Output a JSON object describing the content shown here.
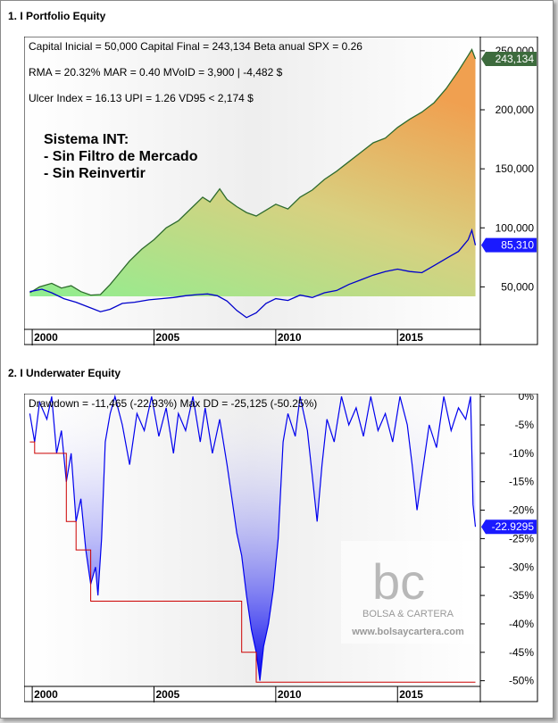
{
  "panel1": {
    "title": "1. I Portfolio Equity",
    "stats": [
      "Capital Inicial = 50,000  Capital Final = 243,134  Beta anual SPX = 0.26",
      "RMA = 20.32%   MAR = 0.40   MVoID = 3,900 | -4,482 $",
      "Ulcer Index = 16.13   UPI = 1.26   VD95 < 2,174 $"
    ],
    "overlay": [
      "Sistema INT:",
      "- Sin Filtro de Mercado",
      "- Sin Reinvertir"
    ]
  },
  "panel2": {
    "title": "2. I Underwater Equity",
    "stats": "Drawdown = -11,465 (-22.93%)        Max DD = -25,125 (-50.25%)",
    "watermark_brand": "BOLSA & CARTERA",
    "watermark_url": "www.bolsaycartera.com"
  },
  "colors": {
    "equity_line": "#2e6b2e",
    "benchmark_line": "#0000cc",
    "area_low": "#90ee90",
    "area_high": "#f0a050",
    "dd_fill": "#0000ee",
    "maxdd_line": "#cc0000",
    "label_green": "#3d6b3d",
    "label_blue": "#1a1aff"
  },
  "chart_data": [
    {
      "type": "line",
      "title": "1. I Portfolio Equity",
      "x_ticks": [
        "2000",
        "2005",
        "2010",
        "2015"
      ],
      "xlim": [
        1999.85,
        2018.4
      ],
      "y_ticks": [
        "50,000",
        "100,000",
        "150,000",
        "200,000",
        "250,000"
      ],
      "y_tick_values": [
        50000,
        100000,
        150000,
        200000,
        250000
      ],
      "ylim": [
        14000,
        262000
      ],
      "last_value_labels": [
        "243,134",
        "85,310"
      ],
      "series": [
        {
          "values": [
            [
              1999.9,
              45000
            ],
            [
              2000.3,
              50000
            ],
            [
              2000.8,
              53000
            ],
            [
              2001.2,
              49000
            ],
            [
              2001.6,
              51000
            ],
            [
              2002.0,
              46000
            ],
            [
              2002.4,
              43000
            ],
            [
              2002.8,
              43500
            ],
            [
              2003.2,
              52000
            ],
            [
              2003.6,
              62000
            ],
            [
              2004.0,
              72000
            ],
            [
              2004.5,
              82000
            ],
            [
              2005.0,
              90000
            ],
            [
              2005.5,
              100000
            ],
            [
              2006.0,
              106000
            ],
            [
              2006.5,
              116000
            ],
            [
              2007.0,
              126000
            ],
            [
              2007.3,
              122000
            ],
            [
              2007.7,
              133000
            ],
            [
              2008.0,
              124000
            ],
            [
              2008.4,
              118000
            ],
            [
              2008.8,
              113000
            ],
            [
              2009.2,
              110000
            ],
            [
              2009.6,
              115000
            ],
            [
              2010.0,
              120000
            ],
            [
              2010.5,
              116000
            ],
            [
              2011.0,
              126000
            ],
            [
              2011.5,
              132000
            ],
            [
              2012.0,
              141000
            ],
            [
              2012.5,
              148000
            ],
            [
              2013.0,
              156000
            ],
            [
              2013.5,
              164000
            ],
            [
              2014.0,
              172000
            ],
            [
              2014.5,
              176000
            ],
            [
              2015.0,
              185000
            ],
            [
              2015.5,
              192000
            ],
            [
              2016.0,
              198000
            ],
            [
              2016.5,
              206000
            ],
            [
              2017.0,
              218000
            ],
            [
              2017.5,
              233000
            ],
            [
              2017.9,
              246000
            ],
            [
              2018.05,
              251000
            ],
            [
              2018.2,
              243134
            ]
          ]
        },
        {
          "values": [
            [
              1999.9,
              46000
            ],
            [
              2000.4,
              48000
            ],
            [
              2000.8,
              45000
            ],
            [
              2001.3,
              40000
            ],
            [
              2001.8,
              37000
            ],
            [
              2002.3,
              33000
            ],
            [
              2002.8,
              29000
            ],
            [
              2003.2,
              31000
            ],
            [
              2003.7,
              36000
            ],
            [
              2004.2,
              37000
            ],
            [
              2004.8,
              39000
            ],
            [
              2005.3,
              40000
            ],
            [
              2005.8,
              41000
            ],
            [
              2006.3,
              42500
            ],
            [
              2006.8,
              43500
            ],
            [
              2007.2,
              44000
            ],
            [
              2007.6,
              42500
            ],
            [
              2008.0,
              38000
            ],
            [
              2008.4,
              30000
            ],
            [
              2008.8,
              24000
            ],
            [
              2009.2,
              28000
            ],
            [
              2009.6,
              36000
            ],
            [
              2010.0,
              40000
            ],
            [
              2010.5,
              38500
            ],
            [
              2011.0,
              43000
            ],
            [
              2011.5,
              41000
            ],
            [
              2012.0,
              45000
            ],
            [
              2012.5,
              47000
            ],
            [
              2013.0,
              52000
            ],
            [
              2013.5,
              56000
            ],
            [
              2014.0,
              60000
            ],
            [
              2014.5,
              63000
            ],
            [
              2015.0,
              65000
            ],
            [
              2015.5,
              63000
            ],
            [
              2016.0,
              62000
            ],
            [
              2016.5,
              68000
            ],
            [
              2017.0,
              74000
            ],
            [
              2017.5,
              80000
            ],
            [
              2017.9,
              90000
            ],
            [
              2018.05,
              98000
            ],
            [
              2018.2,
              85310
            ]
          ]
        }
      ]
    },
    {
      "type": "area",
      "title": "2. I Underwater Equity",
      "x_ticks": [
        "2000",
        "2005",
        "2010",
        "2015"
      ],
      "xlim": [
        1999.85,
        2018.4
      ],
      "y_ticks": [
        "0%",
        "-5%",
        "-10%",
        "-15%",
        "-20%",
        "-25%",
        "-30%",
        "-35%",
        "-40%",
        "-45%",
        "-50%"
      ],
      "y_tick_values": [
        0,
        -5,
        -10,
        -15,
        -20,
        -25,
        -30,
        -35,
        -40,
        -45,
        -50
      ],
      "ylim": [
        -51,
        0.5
      ],
      "last_value_label": "-22.9295",
      "series": [
        {
          "name": "Drawdown %",
          "values": [
            [
              1999.9,
              -3
            ],
            [
              2000.1,
              -8
            ],
            [
              2000.3,
              -1
            ],
            [
              2000.6,
              -4
            ],
            [
              2000.8,
              0
            ],
            [
              2001.0,
              -10
            ],
            [
              2001.2,
              -6
            ],
            [
              2001.4,
              -15
            ],
            [
              2001.6,
              -10
            ],
            [
              2001.8,
              -22
            ],
            [
              2002.0,
              -18
            ],
            [
              2002.2,
              -27
            ],
            [
              2002.4,
              -33
            ],
            [
              2002.6,
              -30
            ],
            [
              2002.7,
              -35
            ],
            [
              2002.85,
              -25
            ],
            [
              2003.0,
              -8
            ],
            [
              2003.2,
              -3
            ],
            [
              2003.4,
              0
            ],
            [
              2003.7,
              -5
            ],
            [
              2004.0,
              -12
            ],
            [
              2004.3,
              -3
            ],
            [
              2004.6,
              -6
            ],
            [
              2004.9,
              0
            ],
            [
              2005.2,
              -7
            ],
            [
              2005.5,
              -2
            ],
            [
              2005.8,
              -10
            ],
            [
              2006.0,
              -3
            ],
            [
              2006.3,
              -6
            ],
            [
              2006.6,
              0
            ],
            [
              2006.9,
              -8
            ],
            [
              2007.1,
              -2
            ],
            [
              2007.4,
              -10
            ],
            [
              2007.7,
              -4
            ],
            [
              2008.0,
              -12
            ],
            [
              2008.2,
              -18
            ],
            [
              2008.4,
              -24
            ],
            [
              2008.6,
              -28
            ],
            [
              2008.8,
              -35
            ],
            [
              2009.0,
              -41
            ],
            [
              2009.2,
              -45
            ],
            [
              2009.35,
              -50
            ],
            [
              2009.5,
              -44
            ],
            [
              2009.7,
              -40
            ],
            [
              2009.9,
              -34
            ],
            [
              2010.1,
              -25
            ],
            [
              2010.3,
              -8
            ],
            [
              2010.5,
              -3
            ],
            [
              2010.8,
              -7
            ],
            [
              2011.0,
              0
            ],
            [
              2011.3,
              -6
            ],
            [
              2011.5,
              -14
            ],
            [
              2011.7,
              -22
            ],
            [
              2011.9,
              -12
            ],
            [
              2012.1,
              -4
            ],
            [
              2012.4,
              -8
            ],
            [
              2012.7,
              0
            ],
            [
              2013.0,
              -5
            ],
            [
              2013.3,
              -2
            ],
            [
              2013.6,
              -7
            ],
            [
              2013.9,
              0
            ],
            [
              2014.2,
              -6
            ],
            [
              2014.5,
              -3
            ],
            [
              2014.8,
              -8
            ],
            [
              2015.1,
              0
            ],
            [
              2015.4,
              -5
            ],
            [
              2015.6,
              -12
            ],
            [
              2015.8,
              -20
            ],
            [
              2016.0,
              -14
            ],
            [
              2016.3,
              -5
            ],
            [
              2016.6,
              -9
            ],
            [
              2016.9,
              0
            ],
            [
              2017.2,
              -6
            ],
            [
              2017.5,
              -2
            ],
            [
              2017.8,
              -4
            ],
            [
              2018.0,
              0
            ],
            [
              2018.1,
              -19
            ],
            [
              2018.2,
              -22.93
            ]
          ]
        },
        {
          "name": "Max DD %",
          "values": [
            [
              1999.9,
              -8
            ],
            [
              2000.1,
              -8
            ],
            [
              2000.1,
              -10
            ],
            [
              2001.4,
              -10
            ],
            [
              2001.4,
              -22
            ],
            [
              2001.8,
              -22
            ],
            [
              2001.8,
              -27
            ],
            [
              2002.4,
              -27
            ],
            [
              2002.4,
              -36
            ],
            [
              2008.6,
              -36
            ],
            [
              2008.6,
              -45
            ],
            [
              2009.2,
              -45
            ],
            [
              2009.2,
              -50.25
            ],
            [
              2018.2,
              -50.25
            ]
          ]
        }
      ]
    }
  ]
}
